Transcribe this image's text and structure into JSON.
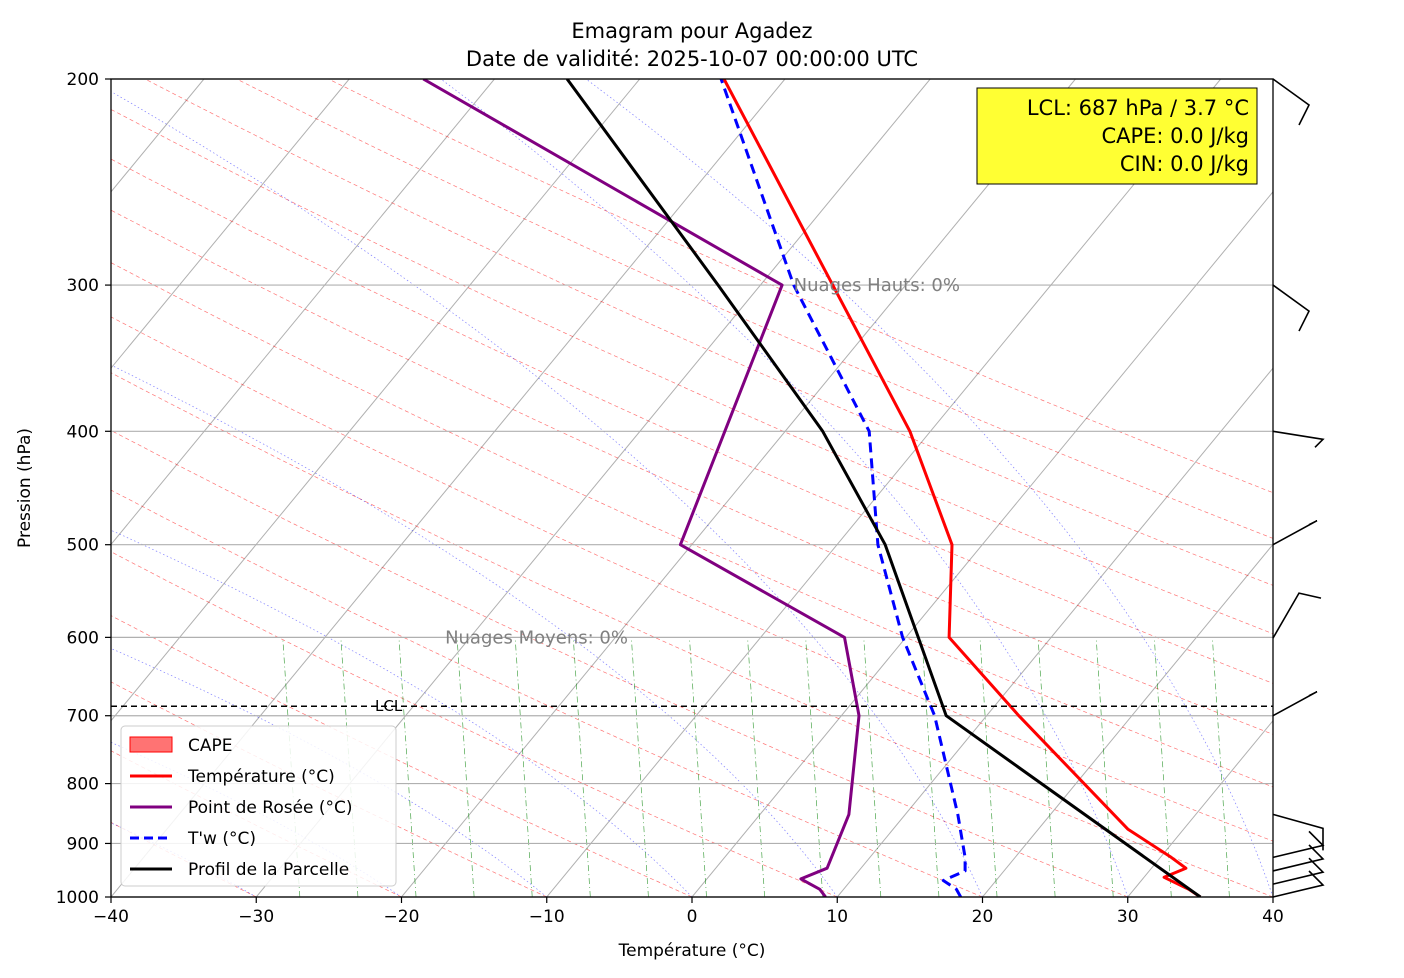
{
  "chart_data": {
    "type": "line",
    "title": "Emagram pour Agadez",
    "subtitle": "Date de validité: 2025-10-07 00:00:00 UTC",
    "xlabel": "Température (°C)",
    "ylabel": "Pression (hPa)",
    "xlim": [
      -40,
      40
    ],
    "ylim": [
      1000,
      200
    ],
    "y_scale": "log",
    "x_ticks": [
      -40,
      -30,
      -20,
      -10,
      0,
      10,
      20,
      30,
      40
    ],
    "x_tick_labels": [
      "−40",
      "−30",
      "−20",
      "−10",
      "0",
      "10",
      "20",
      "30",
      "40"
    ],
    "y_ticks": [
      200,
      300,
      400,
      500,
      600,
      700,
      800,
      900,
      1000
    ],
    "y_tick_labels": [
      "200",
      "300",
      "400",
      "500",
      "600",
      "700",
      "800",
      "900",
      "1000"
    ],
    "grid": true,
    "legend_position": "lower-left",
    "legend": [
      {
        "label": "CAPE",
        "kind": "patch",
        "color": "#ff6464"
      },
      {
        "label": "Température (°C)",
        "kind": "line",
        "color": "#ff0000"
      },
      {
        "label": "Point de Rosée (°C)",
        "kind": "line",
        "color": "#800080"
      },
      {
        "label": "T'w (°C)",
        "kind": "dashed",
        "color": "#0000ff"
      },
      {
        "label": "Profil de la Parcelle",
        "kind": "line",
        "color": "#000000"
      }
    ],
    "series": [
      {
        "key": "temperature",
        "color": "#ff0000",
        "dash": false,
        "points": [
          [
            35.0,
            1000
          ],
          [
            34.2,
            985
          ],
          [
            32.5,
            962
          ],
          [
            34.0,
            945
          ],
          [
            33.0,
            925
          ],
          [
            30.0,
            875
          ],
          [
            22.5,
            700
          ],
          [
            17.7,
            600
          ],
          [
            17.9,
            500
          ],
          [
            15.0,
            400
          ],
          [
            2.2,
            200
          ]
        ]
      },
      {
        "key": "dewpoint",
        "color": "#800080",
        "dash": false,
        "points": [
          [
            9.2,
            1000
          ],
          [
            8.8,
            985
          ],
          [
            7.5,
            965
          ],
          [
            9.3,
            945
          ],
          [
            10.8,
            850
          ],
          [
            11.5,
            700
          ],
          [
            10.5,
            600
          ],
          [
            -0.8,
            500
          ],
          [
            6.2,
            300
          ],
          [
            -18.5,
            200
          ]
        ]
      },
      {
        "key": "wetbulb",
        "color": "#0000ff",
        "dash": true,
        "points": [
          [
            18.5,
            1000
          ],
          [
            18.2,
            985
          ],
          [
            17.3,
            968
          ],
          [
            18.8,
            950
          ],
          [
            18.8,
            925
          ],
          [
            18.3,
            850
          ],
          [
            16.7,
            700
          ],
          [
            14.5,
            600
          ],
          [
            12.8,
            500
          ],
          [
            12.2,
            400
          ],
          [
            7.0,
            300
          ],
          [
            2.0,
            200
          ]
        ]
      },
      {
        "key": "parcel",
        "color": "#000000",
        "dash": false,
        "points": [
          [
            35.0,
            1000
          ],
          [
            17.5,
            700
          ],
          [
            13.3,
            500
          ],
          [
            9.0,
            400
          ],
          [
            1.8,
            300
          ],
          [
            -8.6,
            200
          ]
        ]
      }
    ],
    "lcl": {
      "pressure": 687,
      "label": "LCL"
    },
    "annotations": [
      {
        "text": "Nuages Hauts: 0%",
        "x": 7,
        "p": 300
      },
      {
        "text": "Nuages Moyens: 0%",
        "x": -17,
        "p": 600
      }
    ],
    "info_box": {
      "lines": [
        "LCL: 687 hPa / 3.7 °C",
        "CAPE: 0.0 J/kg",
        "CIN: 0.0 J/kg"
      ],
      "background": "#ffff33"
    },
    "wind_barb_pressures": [
      200,
      300,
      400,
      500,
      550,
      700,
      850,
      925,
      950,
      975,
      1000
    ],
    "colors": {
      "isotherm": "#b0b0b0",
      "dry_adiabat": "#ff0000",
      "moist_adiabat": "#0000ff",
      "mixing_ratio": "#008000"
    }
  }
}
